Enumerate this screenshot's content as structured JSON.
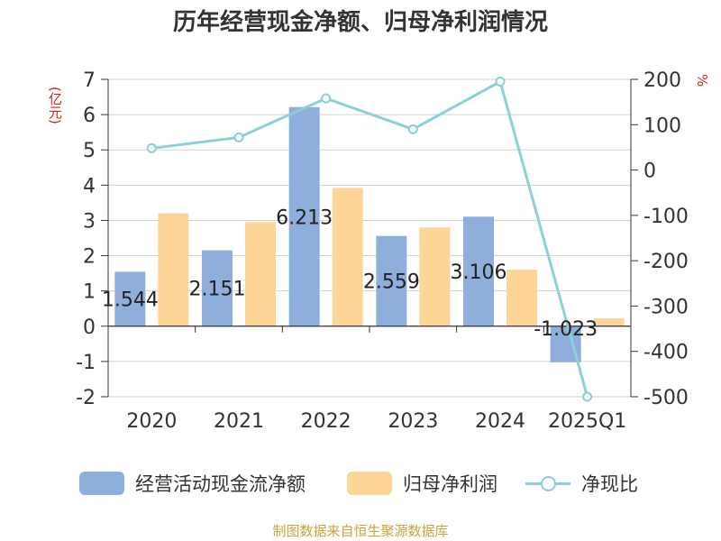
{
  "title": "历年经营现金净额、归母净利润情况",
  "left_unit": "(亿元)",
  "right_unit": "%",
  "footer": "制图数据来自恒生聚源数据库",
  "chart_data": {
    "type": "bar",
    "categories": [
      "2020",
      "2021",
      "2022",
      "2023",
      "2024",
      "2025Q1"
    ],
    "series": [
      {
        "name": "经营活动现金流净额",
        "type": "bar",
        "axis": "left",
        "color": "#8eaedb",
        "values": [
          1.544,
          2.151,
          6.213,
          2.559,
          3.106,
          -1.023
        ],
        "labels": [
          "1.544",
          "2.151",
          "6.213",
          "2.559",
          "3.106",
          "-1.023"
        ]
      },
      {
        "name": "归母净利润",
        "type": "bar",
        "axis": "left",
        "color": "#fdd597",
        "values": [
          3.2,
          2.95,
          3.92,
          2.8,
          1.6,
          0.22
        ]
      },
      {
        "name": "净现比",
        "type": "line",
        "axis": "right",
        "color": "#8ad1d6",
        "values": [
          48,
          72,
          158,
          90,
          195,
          -500
        ]
      }
    ],
    "left_axis": {
      "min": -2,
      "max": 7,
      "ticks": [
        -2,
        -1,
        0,
        1,
        2,
        3,
        4,
        5,
        6,
        7
      ]
    },
    "right_axis": {
      "min": -500,
      "max": 200,
      "ticks": [
        -500,
        -400,
        -300,
        -200,
        -100,
        0,
        100,
        200
      ]
    },
    "grid": true,
    "legend": "bottom"
  }
}
